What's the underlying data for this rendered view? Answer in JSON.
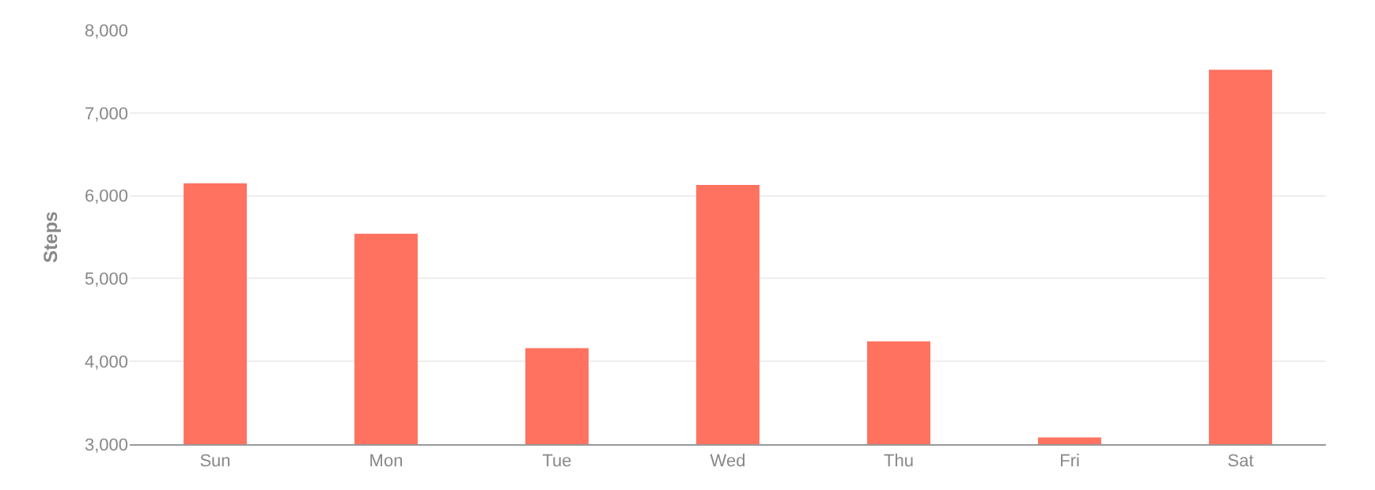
{
  "chart_data": {
    "type": "bar",
    "ylabel": "Steps",
    "categories": [
      "Sun",
      "Mon",
      "Tue",
      "Wed",
      "Thu",
      "Fri",
      "Sat"
    ],
    "values": [
      6150,
      5540,
      4160,
      6130,
      4240,
      3080,
      7520
    ],
    "color": "#ff7260",
    "ylim": [
      3000,
      8000
    ],
    "yticks": [
      {
        "value": 3000,
        "label": "3,000"
      },
      {
        "value": 4000,
        "label": "4,000"
      },
      {
        "value": 5000,
        "label": "5,000"
      },
      {
        "value": 6000,
        "label": "6,000"
      },
      {
        "value": 7000,
        "label": "7,000"
      },
      {
        "value": 8000,
        "label": "8,000"
      }
    ],
    "grid": "y"
  }
}
